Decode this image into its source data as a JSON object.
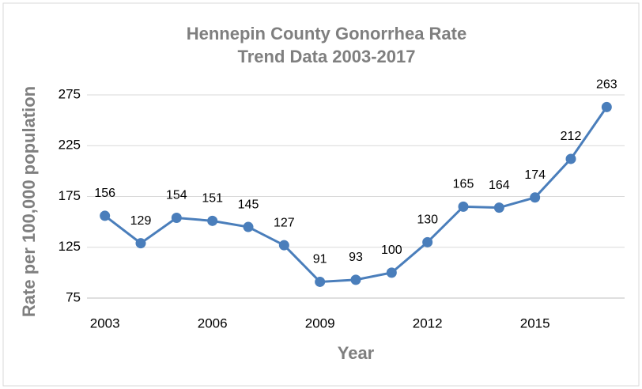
{
  "chart_data": {
    "type": "line",
    "title": [
      "Hennepin County Gonorrhea Rate",
      "Trend Data 2003-2017"
    ],
    "x_label": "Year",
    "y_label": "Rate per 100,000 population",
    "x": [
      2003,
      2004,
      2005,
      2006,
      2007,
      2008,
      2009,
      2010,
      2011,
      2012,
      2013,
      2014,
      2015,
      2016,
      2017
    ],
    "series": [
      {
        "name": "Rate",
        "color": "#4a7ebb",
        "values": [
          156,
          129,
          154,
          151,
          145,
          127,
          91,
          93,
          100,
          130,
          165,
          164,
          174,
          212,
          263
        ]
      }
    ],
    "xlim": [
      2002.5,
      2017.5
    ],
    "xticks": [
      2003,
      2006,
      2009,
      2012,
      2015
    ],
    "ylim": [
      75,
      275
    ],
    "yticks": [
      75,
      125,
      175,
      225,
      275
    ],
    "grid": true
  }
}
